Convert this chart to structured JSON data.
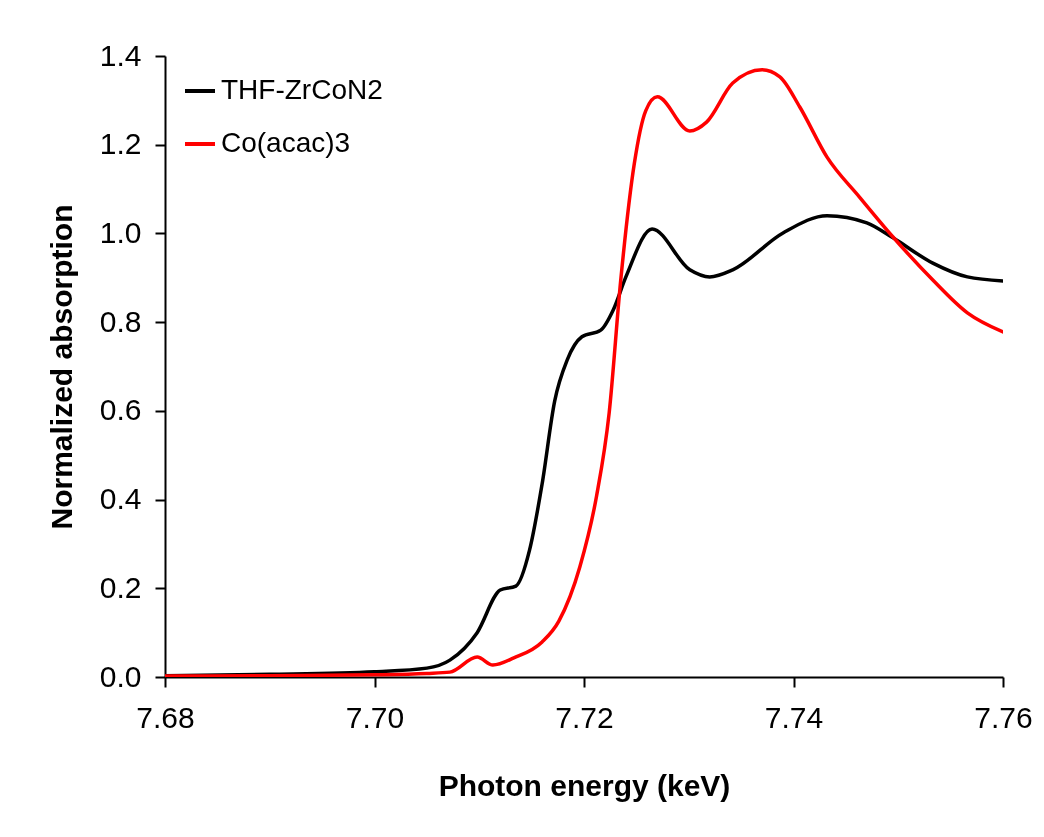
{
  "chart_data": {
    "type": "line",
    "xlabel": "Photon energy (keV)",
    "ylabel": "Normalized absorption",
    "xlim": [
      7.68,
      7.76
    ],
    "xticks": [
      7.68,
      {
        "value": 7.7,
        "label": "7.70"
      },
      7.72,
      7.74,
      7.76
    ],
    "ylim": [
      0,
      1.4
    ],
    "yticks": [
      {
        "value": 0,
        "label": "0.0"
      },
      0.2,
      0.4,
      0.6,
      0.8,
      {
        "value": 1,
        "label": "1.0"
      },
      1.2,
      1.4
    ],
    "legend": "top left",
    "grid": false,
    "line_style": "solid",
    "marker": "none",
    "series": [
      {
        "name": "THF-ZrCoN2",
        "color": "#000000",
        "x": [
          7.68,
          7.69,
          7.7,
          7.705,
          7.7072,
          7.7098,
          7.712,
          7.7135,
          7.7148,
          7.716,
          7.7172,
          7.7184,
          7.7198,
          7.7216,
          7.7228,
          7.724,
          7.7265,
          7.7301,
          7.732,
          7.7342,
          7.739,
          7.7432,
          7.747,
          7.7495,
          7.7533,
          7.7566,
          7.76
        ],
        "values": [
          0.003,
          0.006,
          0.012,
          0.02,
          0.038,
          0.1,
          0.196,
          0.205,
          0.286,
          0.435,
          0.622,
          0.715,
          0.767,
          0.782,
          0.828,
          0.902,
          1.01,
          0.918,
          0.902,
          0.918,
          1.001,
          1.04,
          1.024,
          0.99,
          0.933,
          0.902,
          0.893
        ]
      },
      {
        "name": "Co(acac)3",
        "color": "#ff0000",
        "x": [
          7.68,
          7.69,
          7.7,
          7.705,
          7.7072,
          7.7098,
          7.7113,
          7.7133,
          7.716,
          7.7176,
          7.7196,
          7.7212,
          7.7224,
          7.7235,
          7.7248,
          7.7259,
          7.727,
          7.7301,
          7.7317,
          7.7342,
          7.737,
          7.7387,
          7.7406,
          7.7432,
          7.7463,
          7.7495,
          7.7533,
          7.7566,
          7.76
        ],
        "values": [
          0.002,
          0.003,
          0.005,
          0.008,
          0.011,
          0.045,
          0.027,
          0.043,
          0.079,
          0.126,
          0.248,
          0.408,
          0.595,
          0.893,
          1.157,
          1.277,
          1.308,
          1.231,
          1.251,
          1.339,
          1.369,
          1.353,
          1.285,
          1.172,
          1.082,
          0.992,
          0.895,
          0.821,
          0.778
        ]
      }
    ]
  }
}
